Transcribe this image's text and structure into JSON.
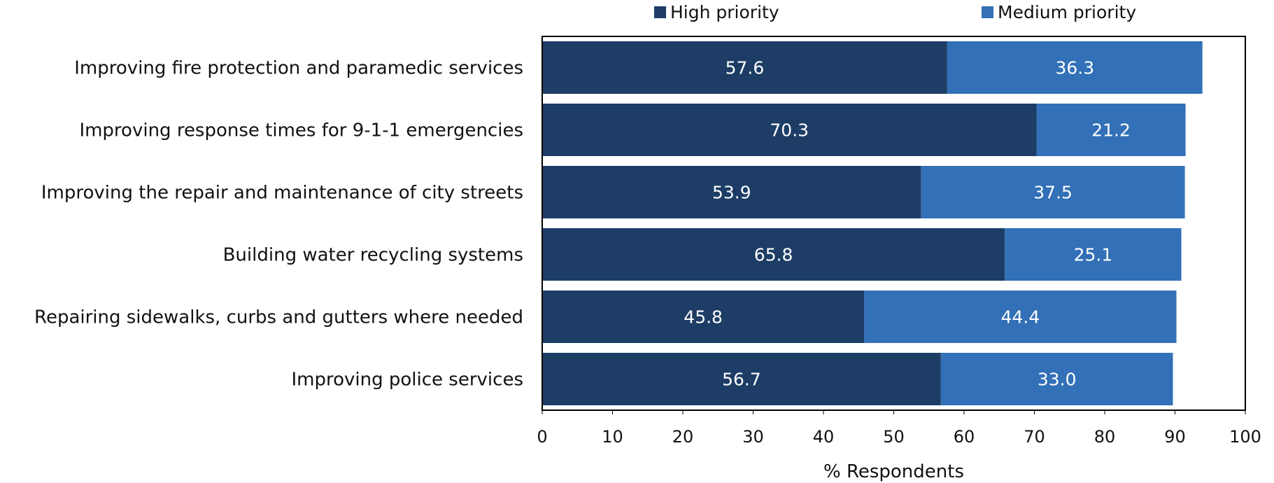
{
  "chart_data": {
    "type": "bar",
    "orientation": "horizontal",
    "stacked": true,
    "categories": [
      "Improving fire protection and paramedic services",
      "Improving response times for 9-1-1 emergencies",
      "Improving the repair and maintenance of city streets",
      "Building water recycling systems",
      "Repairing sidewalks, curbs and gutters where needed",
      "Improving police services"
    ],
    "series": [
      {
        "name": "High priority",
        "color": "#1d3d66",
        "values": [
          57.6,
          70.3,
          53.9,
          65.8,
          45.8,
          56.7
        ],
        "labels": [
          "57.6",
          "70.3",
          "53.9",
          "65.8",
          "45.8",
          "56.7"
        ]
      },
      {
        "name": "Medium priority",
        "color": "#3270b7",
        "values": [
          36.3,
          21.2,
          37.5,
          25.1,
          44.4,
          33.0
        ],
        "labels": [
          "36.3",
          "21.2",
          "37.5",
          "25.1",
          "44.4",
          "33.0"
        ]
      }
    ],
    "xlabel": "% Respondents",
    "ylabel": "",
    "xlim": [
      0,
      100
    ],
    "xticks": [
      "0",
      "10",
      "20",
      "30",
      "40",
      "50",
      "60",
      "70",
      "80",
      "90",
      "100"
    ],
    "grid": false,
    "legend_position": "top"
  }
}
